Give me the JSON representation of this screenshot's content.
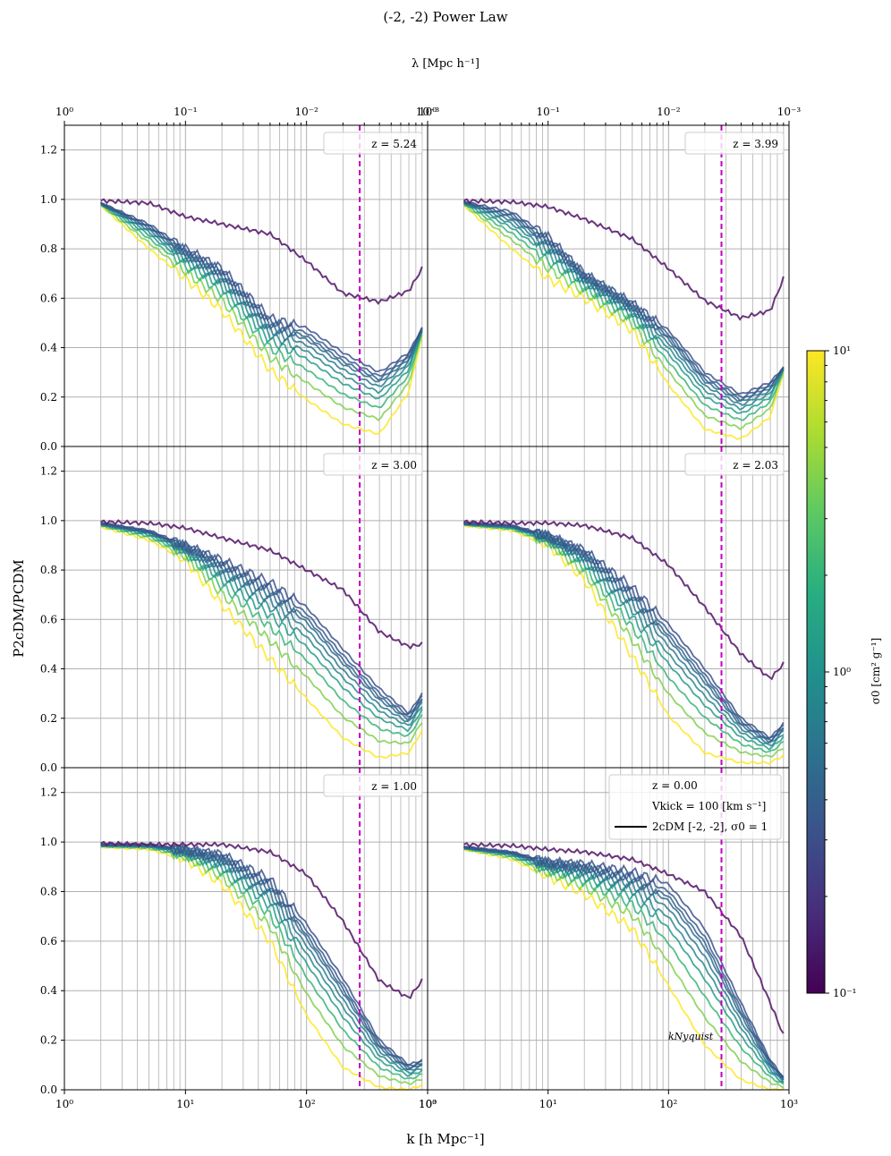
{
  "chart_data": {
    "type": "line",
    "title": "(-2, -2) Power Law",
    "top_axis_label": "λ [Mpc h⁻¹]",
    "top_ticks": [
      "10⁰",
      "10⁻¹",
      "10⁻²",
      "10⁻³"
    ],
    "xlabel": "k [h Mpc⁻¹]",
    "x_ticks": [
      "10⁰",
      "10¹",
      "10²",
      "10³"
    ],
    "ylabel": "P2cDM/PCDM",
    "y_ticks": [
      "0.0",
      "0.2",
      "0.4",
      "0.6",
      "0.8",
      "1.0",
      "1.2"
    ],
    "xlim": [
      1,
      1000
    ],
    "ylim": [
      0,
      1.3
    ],
    "xscale": "log",
    "k_nyquist": 275,
    "k_nyquist_label": "kNyquist",
    "colorbar": {
      "label": "σ0 [cm² g⁻¹]",
      "ticks": [
        "10¹",
        "10⁰",
        "10⁻¹"
      ],
      "range": [
        0.1,
        10
      ],
      "colormap": "viridis"
    },
    "legend": {
      "line1": "z = 0.00",
      "line2": "Vkick = 100 [km s⁻¹]",
      "line3": "2cDM [-2, -2], σ0 = 1"
    },
    "sigma_values": [
      0.1,
      0.7,
      0.8,
      0.9,
      1.0,
      1.2,
      1.5,
      2.0,
      3.0,
      5.0,
      10.0
    ],
    "panels": [
      {
        "label": "z = 5.24",
        "k": [
          2,
          5,
          10,
          20,
          50,
          100,
          200,
          400,
          700,
          900
        ],
        "purple": [
          0.995,
          0.985,
          0.93,
          0.9,
          0.86,
          0.75,
          0.62,
          0.585,
          0.63,
          0.72
        ],
        "strong": [
          0.985,
          0.9,
          0.8,
          0.72,
          0.52,
          0.48,
          0.38,
          0.3,
          0.38,
          0.48
        ],
        "weak": [
          0.975,
          0.8,
          0.68,
          0.55,
          0.31,
          0.19,
          0.09,
          0.05,
          0.22,
          0.45
        ]
      },
      {
        "label": "z = 3.99",
        "k": [
          2,
          5,
          10,
          20,
          50,
          100,
          200,
          400,
          700,
          900
        ],
        "purple": [
          0.995,
          0.99,
          0.97,
          0.92,
          0.84,
          0.72,
          0.59,
          0.52,
          0.55,
          0.68
        ],
        "strong": [
          0.99,
          0.95,
          0.85,
          0.7,
          0.58,
          0.47,
          0.3,
          0.21,
          0.26,
          0.32
        ],
        "weak": [
          0.975,
          0.8,
          0.68,
          0.6,
          0.47,
          0.25,
          0.07,
          0.03,
          0.12,
          0.3
        ]
      },
      {
        "label": "z = 3.00",
        "k": [
          2,
          5,
          10,
          20,
          50,
          100,
          200,
          400,
          700,
          900
        ],
        "purple": [
          0.995,
          0.99,
          0.97,
          0.93,
          0.88,
          0.8,
          0.72,
          0.55,
          0.49,
          0.5
        ],
        "strong": [
          0.99,
          0.96,
          0.9,
          0.84,
          0.75,
          0.65,
          0.48,
          0.32,
          0.22,
          0.3
        ],
        "weak": [
          0.975,
          0.92,
          0.84,
          0.66,
          0.44,
          0.28,
          0.12,
          0.04,
          0.06,
          0.15
        ]
      },
      {
        "label": "z = 2.03",
        "k": [
          2,
          5,
          10,
          20,
          50,
          100,
          200,
          400,
          700,
          900
        ],
        "purple": [
          0.995,
          0.99,
          0.99,
          0.98,
          0.93,
          0.82,
          0.65,
          0.46,
          0.36,
          0.42
        ],
        "strong": [
          0.99,
          0.98,
          0.94,
          0.88,
          0.73,
          0.58,
          0.4,
          0.2,
          0.12,
          0.18
        ],
        "weak": [
          0.98,
          0.96,
          0.9,
          0.76,
          0.45,
          0.21,
          0.06,
          0.02,
          0.02,
          0.05
        ]
      },
      {
        "label": "z = 1.00",
        "k": [
          2,
          5,
          10,
          20,
          50,
          100,
          200,
          400,
          700,
          900
        ],
        "purple": [
          0.995,
          0.99,
          0.99,
          0.99,
          0.96,
          0.87,
          0.68,
          0.44,
          0.37,
          0.44
        ],
        "strong": [
          0.99,
          0.99,
          0.97,
          0.95,
          0.85,
          0.67,
          0.45,
          0.2,
          0.1,
          0.12
        ],
        "weak": [
          0.98,
          0.97,
          0.93,
          0.83,
          0.6,
          0.3,
          0.09,
          0.01,
          0.0,
          0.02
        ]
      },
      {
        "label": "",
        "k": [
          2,
          5,
          10,
          20,
          50,
          100,
          200,
          400,
          700,
          900
        ],
        "purple": [
          0.99,
          0.985,
          0.97,
          0.96,
          0.93,
          0.87,
          0.8,
          0.62,
          0.35,
          0.22
        ],
        "strong": [
          0.98,
          0.96,
          0.92,
          0.91,
          0.88,
          0.83,
          0.65,
          0.35,
          0.12,
          0.05
        ],
        "weak": [
          0.97,
          0.93,
          0.86,
          0.79,
          0.65,
          0.42,
          0.18,
          0.04,
          0.0,
          0.0
        ]
      }
    ]
  }
}
